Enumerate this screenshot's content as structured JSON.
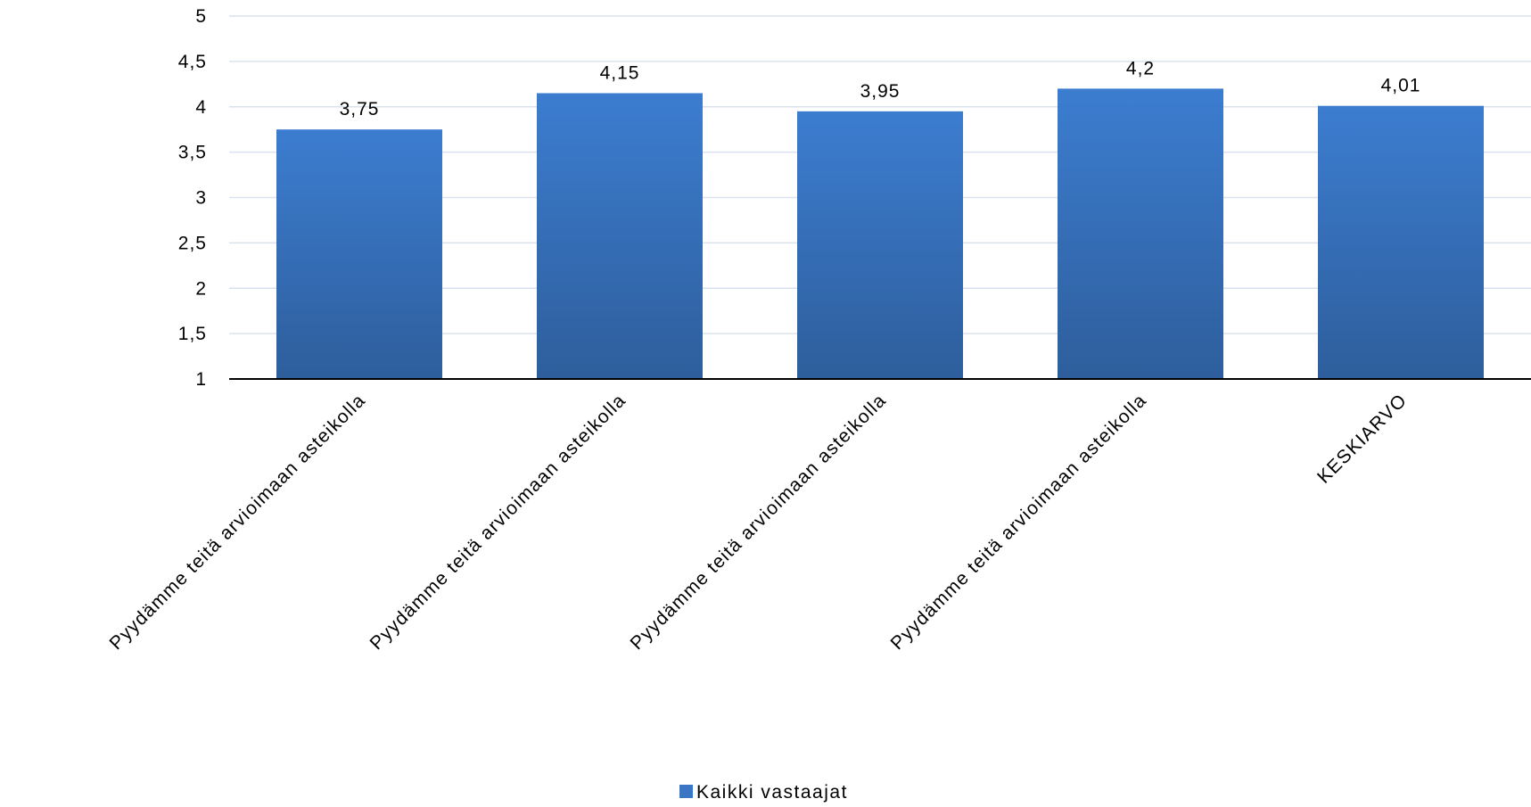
{
  "chart_data": {
    "type": "bar",
    "categories": [
      "Pyydämme teitä arvioimaan asteikolla",
      "Pyydämme teitä arvioimaan asteikolla",
      "Pyydämme teitä arvioimaan asteikolla",
      "Pyydämme teitä arvioimaan asteikolla",
      "KESKIARVO"
    ],
    "series": [
      {
        "name": "Kaikki vastaajat",
        "values": [
          3.75,
          4.15,
          3.95,
          4.2,
          4.01
        ],
        "value_labels": [
          "3,75",
          "4,15",
          "3,95",
          "4,2",
          "4,01"
        ],
        "color": "#3A76C4"
      }
    ],
    "ylim": [
      1,
      5
    ],
    "yticks": [
      1,
      1.5,
      2,
      2.5,
      3,
      3.5,
      4,
      4.5,
      5
    ],
    "ytick_labels": [
      "1",
      "1,5",
      "2",
      "2,5",
      "3",
      "3,5",
      "4",
      "4,5",
      "5"
    ],
    "grid": true,
    "legend_position": "bottom-center",
    "colors": {
      "bar_top": "#3C7DD0",
      "bar_bottom": "#2E5E9C",
      "grid": "#D9E2EE",
      "axis": "#000000"
    }
  }
}
